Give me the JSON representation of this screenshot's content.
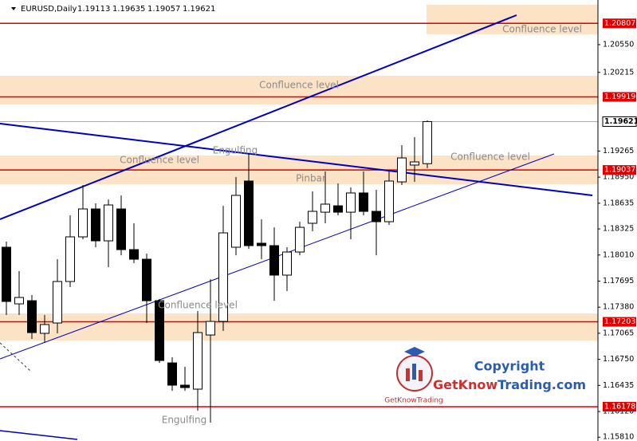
{
  "chart_data": {
    "type": "candlestick",
    "symbol": "EURUSD,Daily",
    "open": [
      1.18104,
      1.1742,
      1.17458,
      1.17064,
      1.17189,
      1.1769,
      1.18229,
      1.18566,
      1.18181,
      1.18566,
      1.18075,
      1.17959,
      1.17458,
      1.16707,
      1.16438,
      1.1639,
      1.17044,
      1.17208,
      1.18104,
      1.18903,
      1.18152,
      1.18123,
      1.17767,
      1.18046,
      1.18393,
      1.18527,
      1.18604,
      1.18527,
      1.18759,
      1.18537,
      1.18412,
      1.18893,
      1.19096,
      1.19113
    ],
    "high": [
      1.18171,
      1.17815,
      1.17526,
      1.17285,
      1.17959,
      1.18489,
      1.18855,
      1.18633,
      1.18681,
      1.1873,
      1.18393,
      1.18027,
      1.17478,
      1.16775,
      1.16659,
      1.17333,
      1.17718,
      1.18604,
      1.18951,
      1.1924,
      1.18441,
      1.18344,
      1.18104,
      1.18412,
      1.18778,
      1.19019,
      1.18874,
      1.18826,
      1.19019,
      1.18797,
      1.19019,
      1.19336,
      1.19433,
      1.19635
    ],
    "low": [
      1.17285,
      1.17285,
      1.16996,
      1.16948,
      1.17064,
      1.17622,
      1.182,
      1.18104,
      1.17863,
      1.18007,
      1.17911,
      1.17189,
      1.16707,
      1.1637,
      1.1637,
      1.1613,
      1.15985,
      1.17093,
      1.18007,
      1.18084,
      1.17959,
      1.17458,
      1.17574,
      1.18007,
      1.18296,
      1.18393,
      1.18489,
      1.182,
      1.18489,
      1.18007,
      1.18373,
      1.18855,
      1.18893,
      1.19057
    ],
    "close": [
      1.17449,
      1.17497,
      1.17073,
      1.1717,
      1.1769,
      1.18229,
      1.18566,
      1.18181,
      1.18614,
      1.18075,
      1.17959,
      1.17458,
      1.16736,
      1.16438,
      1.16409,
      1.17073,
      1.17208,
      1.18277,
      1.1873,
      1.18123,
      1.18123,
      1.17767,
      1.18046,
      1.18344,
      1.18537,
      1.18624,
      1.18527,
      1.18759,
      1.18537,
      1.18412,
      1.18903,
      1.19182,
      1.19134,
      1.19621
    ],
    "up_color": "#ffffff",
    "down_color": "#000000",
    "ylim": [
      1.15764,
      1.21089
    ],
    "yticks": [
      {
        "value": 1.2055,
        "label": "1.20550"
      },
      1.20215,
      1.19265,
      {
        "value": 1.1895,
        "label": "1.18950"
      },
      1.18635,
      1.18325,
      {
        "value": 1.1801,
        "label": "1.18010"
      },
      1.17695,
      {
        "value": 1.1738,
        "label": "1.17380"
      },
      1.17065,
      {
        "value": 1.1675,
        "label": "1.16750"
      },
      1.16435,
      {
        "value": 1.1612,
        "label": "1.16120"
      },
      {
        "value": 1.1581,
        "label": "1.15810"
      }
    ],
    "levels": [
      1.20807,
      1.19919,
      1.19037,
      1.17203,
      1.16178
    ],
    "level_color": "#e00000",
    "annotations": [
      "Confluence level",
      "Confluence level",
      "Confluence level",
      "Confluence level",
      "Confluence level",
      "Engulfing",
      "Engulfing",
      "Pinbar"
    ]
  },
  "logo": {
    "caption": "GetKnowTrading",
    "copyright": "Copyright",
    "site_a": "GetKnow",
    "site_b": "Trading.com"
  }
}
